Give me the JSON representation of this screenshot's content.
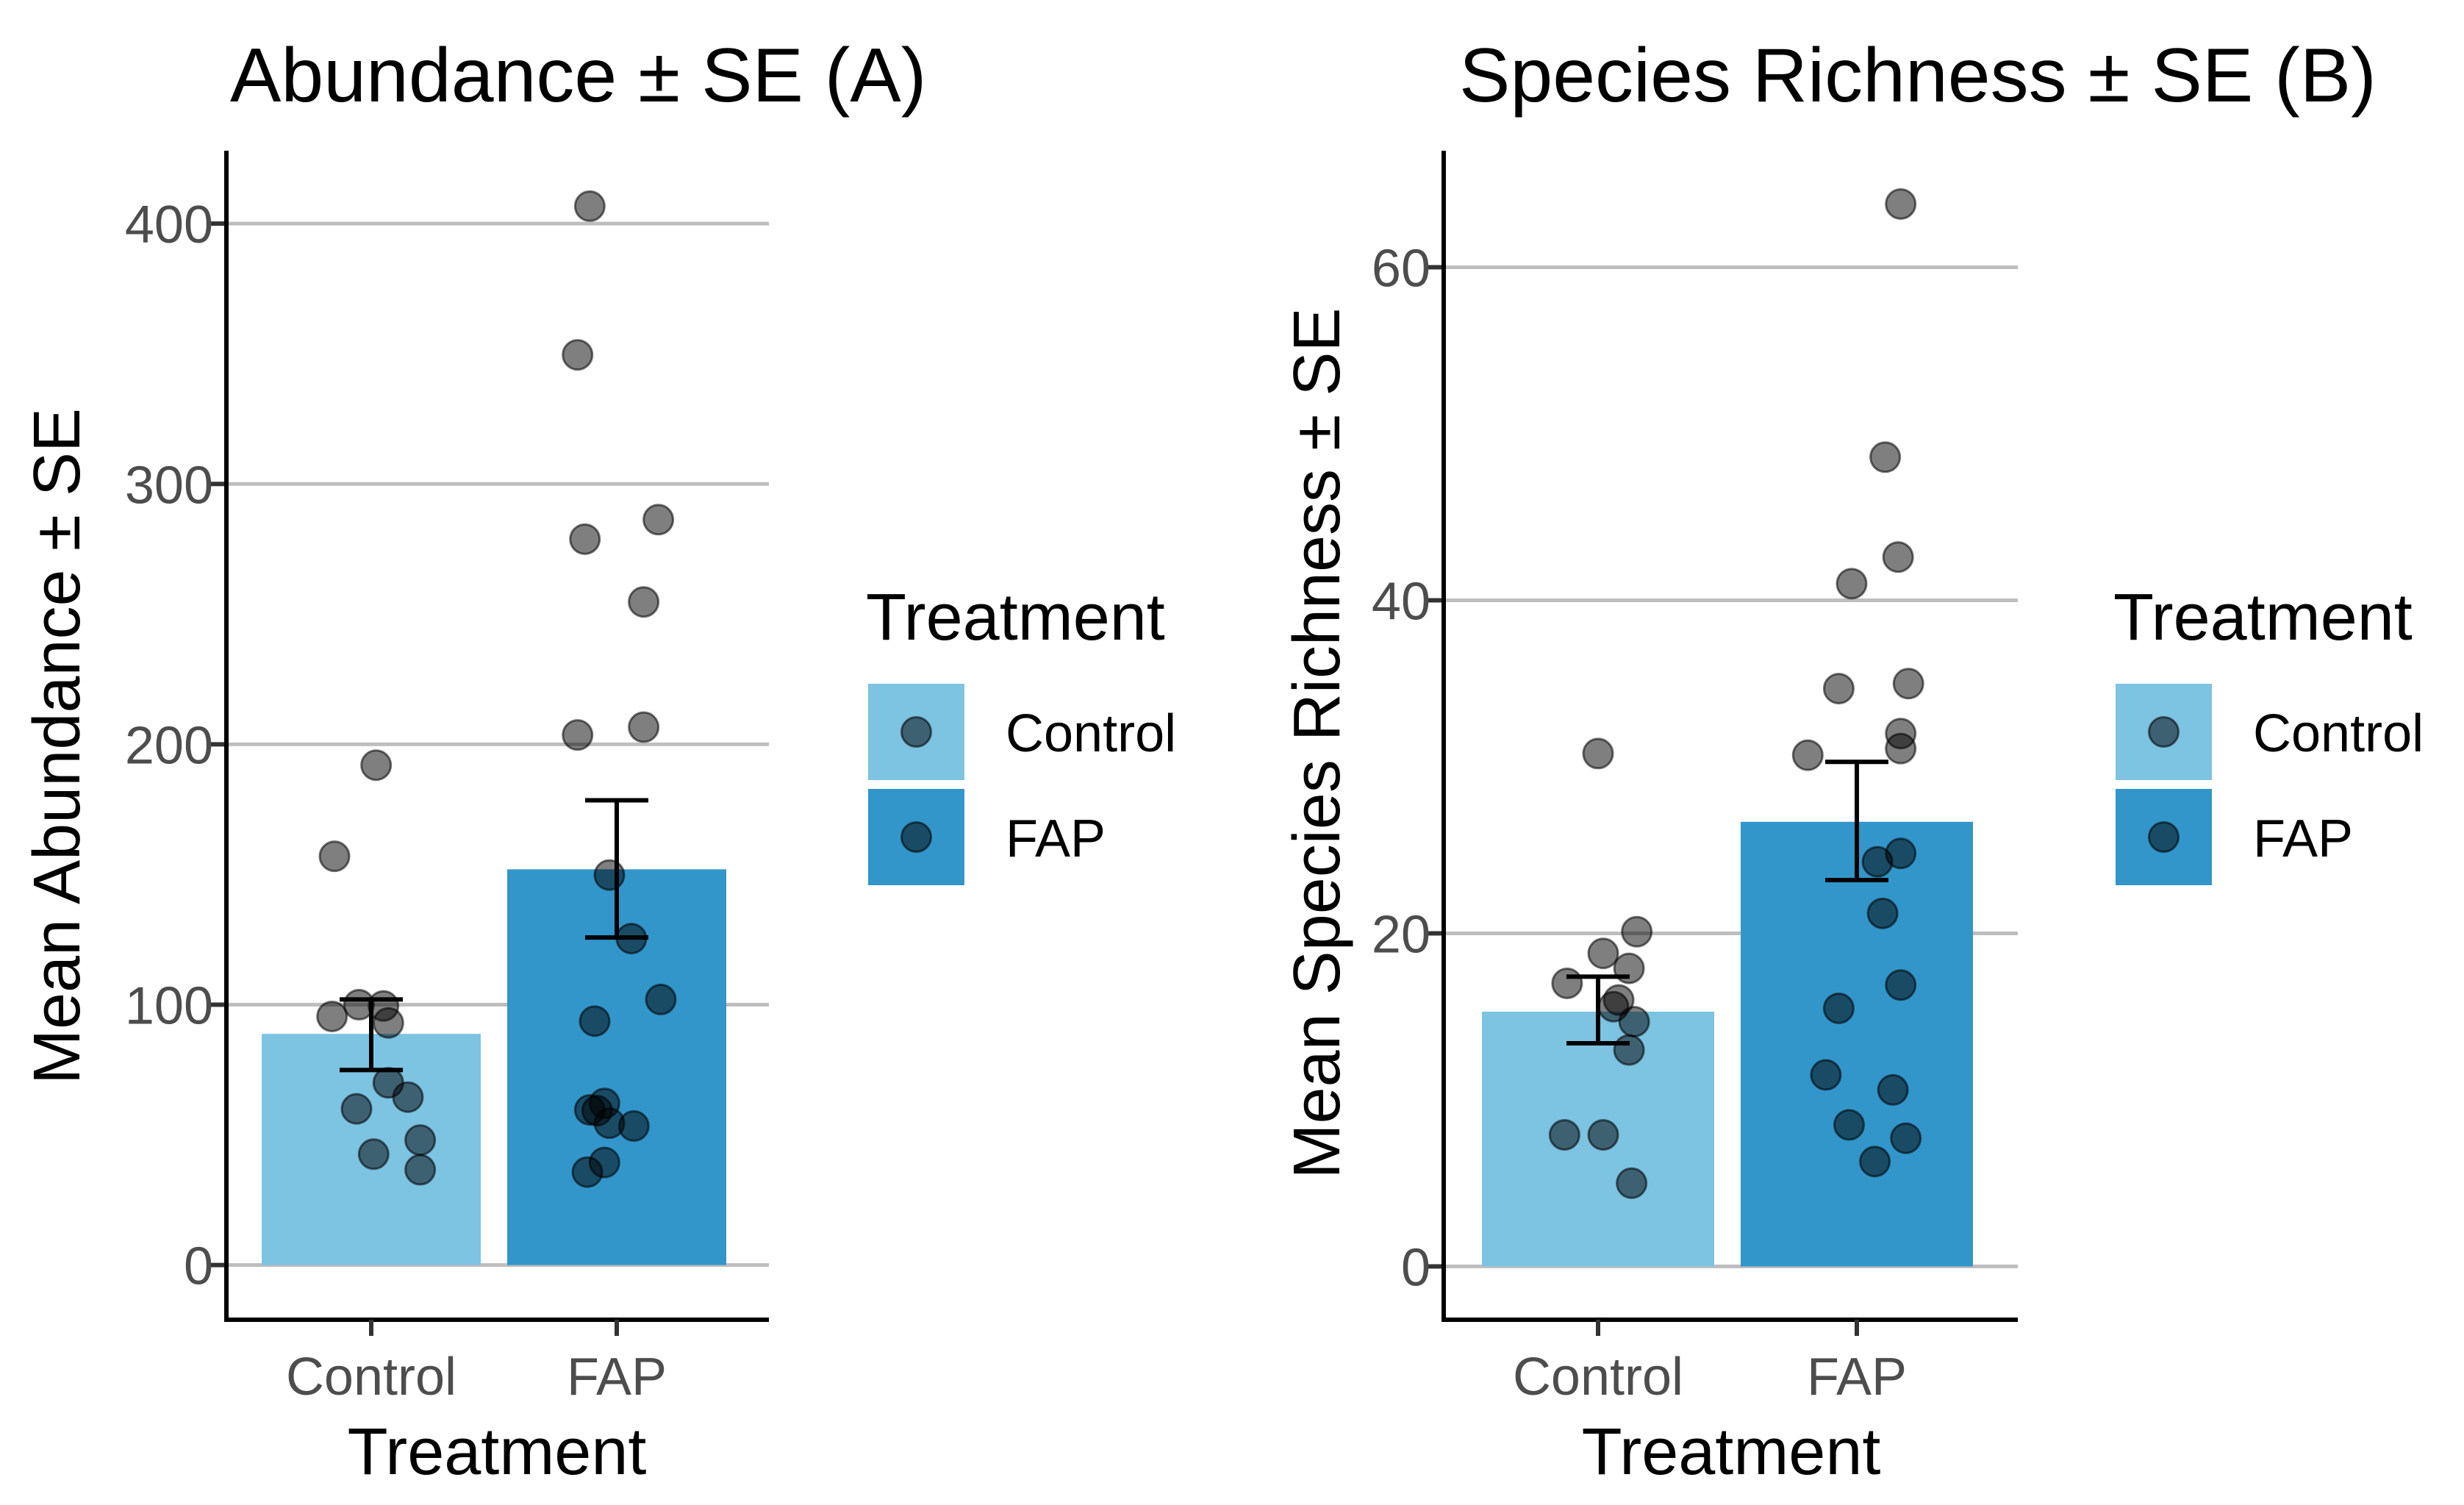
{
  "chart_data": [
    {
      "type": "bar",
      "title": "Abundance ± SE (A)",
      "xlabel": "Treatment",
      "ylabel": "Mean Abundance ± SE",
      "categories": [
        "Control",
        "FAP"
      ],
      "values": [
        88.8,
        152.0
      ],
      "error_bars": [
        {
          "lower": 74.9,
          "upper": 102.0
        },
        {
          "lower": 125.8,
          "upper": 178.5
        }
      ],
      "ylim": [
        -21,
        428
      ],
      "yticks": [
        0,
        100,
        200,
        300,
        400
      ],
      "ytick_labels": [
        "0",
        "100",
        "200",
        "300",
        "400"
      ],
      "grid": "horizontal major",
      "colors": {
        "Control": "#7DC3E2",
        "FAP": "#3296CA"
      },
      "points": {
        "Control": [
          {
            "y": 192,
            "jitter": 0.02
          },
          {
            "y": 157,
            "jitter": -0.15
          },
          {
            "y": 95.5,
            "jitter": -0.16
          },
          {
            "y": 100,
            "jitter": -0.05
          },
          {
            "y": 99.5,
            "jitter": 0.05
          },
          {
            "y": 93,
            "jitter": 0.07
          },
          {
            "y": 70,
            "jitter": 0.07
          },
          {
            "y": 64.5,
            "jitter": 0.15
          },
          {
            "y": 60,
            "jitter": -0.06
          },
          {
            "y": 48,
            "jitter": 0.2
          },
          {
            "y": 42.6,
            "jitter": 0.01
          },
          {
            "y": 36.6,
            "jitter": 0.2
          }
        ],
        "FAP": [
          {
            "y": 406.7,
            "jitter": -0.11
          },
          {
            "y": 349.6,
            "jitter": -0.16
          },
          {
            "y": 278.8,
            "jitter": -0.13
          },
          {
            "y": 286.3,
            "jitter": 0.17
          },
          {
            "y": 254.7,
            "jitter": 0.11
          },
          {
            "y": 203.6,
            "jitter": -0.16
          },
          {
            "y": 206.6,
            "jitter": 0.11
          },
          {
            "y": 149.8,
            "jitter": -0.03
          },
          {
            "y": 125.4,
            "jitter": 0.06
          },
          {
            "y": 102,
            "jitter": 0.18
          },
          {
            "y": 93.7,
            "jitter": -0.09
          },
          {
            "y": 62.1,
            "jitter": -0.05
          },
          {
            "y": 59.6,
            "jitter": -0.11
          },
          {
            "y": 59.3,
            "jitter": -0.08
          },
          {
            "y": 54.5,
            "jitter": -0.03
          },
          {
            "y": 53.4,
            "jitter": 0.07
          },
          {
            "y": 39.4,
            "jitter": -0.05
          },
          {
            "y": 35.7,
            "jitter": -0.12
          }
        ]
      },
      "legend": {
        "title": "Treatment",
        "position": "right",
        "entries": [
          {
            "label": "Control",
            "color": "#7DC3E2"
          },
          {
            "label": "FAP",
            "color": "#3296CA"
          }
        ]
      }
    },
    {
      "type": "bar",
      "title": "Species Richness ± SE (B)",
      "xlabel": "Treatment",
      "ylabel": "Mean Species Richness ± SE",
      "categories": [
        "Control",
        "FAP"
      ],
      "values": [
        15.3,
        26.7
      ],
      "error_bars": [
        {
          "lower": 13.4,
          "upper": 17.4
        },
        {
          "lower": 23.2,
          "upper": 30.3
        }
      ],
      "ylim": [
        -3.2,
        67
      ],
      "yticks": [
        0,
        20,
        40,
        60
      ],
      "ytick_labels": [
        "0",
        "20",
        "40",
        "60"
      ],
      "grid": "horizontal major",
      "colors": {
        "Control": "#7DC3E2",
        "FAP": "#3296CA"
      },
      "points": {
        "Control": [
          {
            "y": 30.8,
            "jitter": 0.0
          },
          {
            "y": 20.1,
            "jitter": 0.15
          },
          {
            "y": 18.8,
            "jitter": 0.02
          },
          {
            "y": 17.9,
            "jitter": 0.12
          },
          {
            "y": 17.0,
            "jitter": -0.12
          },
          {
            "y": 16.0,
            "jitter": 0.08
          },
          {
            "y": 15.6,
            "jitter": 0.06
          },
          {
            "y": 14.7,
            "jitter": 0.14
          },
          {
            "y": 13.0,
            "jitter": 0.12
          },
          {
            "y": 7.9,
            "jitter": -0.13
          },
          {
            "y": 7.9,
            "jitter": 0.02
          },
          {
            "y": 5.0,
            "jitter": 0.13
          }
        ],
        "FAP": [
          {
            "y": 63.8,
            "jitter": 0.17
          },
          {
            "y": 48.6,
            "jitter": 0.11
          },
          {
            "y": 42.6,
            "jitter": 0.16
          },
          {
            "y": 41.0,
            "jitter": -0.02
          },
          {
            "y": 35.0,
            "jitter": 0.2
          },
          {
            "y": 34.7,
            "jitter": -0.07
          },
          {
            "y": 32.0,
            "jitter": 0.17
          },
          {
            "y": 31.1,
            "jitter": 0.17
          },
          {
            "y": 30.7,
            "jitter": -0.19
          },
          {
            "y": 24.8,
            "jitter": 0.17
          },
          {
            "y": 24.3,
            "jitter": 0.08
          },
          {
            "y": 21.2,
            "jitter": 0.1
          },
          {
            "y": 16.9,
            "jitter": 0.17
          },
          {
            "y": 15.5,
            "jitter": -0.07
          },
          {
            "y": 11.5,
            "jitter": -0.12
          },
          {
            "y": 10.6,
            "jitter": 0.14
          },
          {
            "y": 8.5,
            "jitter": -0.03
          },
          {
            "y": 7.7,
            "jitter": 0.19
          },
          {
            "y": 6.3,
            "jitter": 0.07
          }
        ]
      },
      "legend": {
        "title": "Treatment",
        "position": "right",
        "entries": [
          {
            "label": "Control",
            "color": "#7DC3E2"
          },
          {
            "label": "FAP",
            "color": "#3296CA"
          }
        ]
      }
    }
  ]
}
